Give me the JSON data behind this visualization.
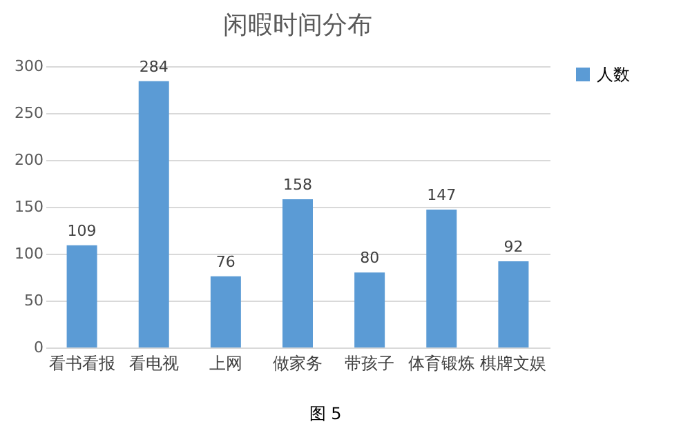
{
  "chart_data": {
    "type": "bar",
    "title": "闲暇时间分布",
    "categories": [
      "看书看报",
      "看电视",
      "上网",
      "做家务",
      "带孩子",
      "体育锻炼",
      "棋牌文娱"
    ],
    "series": [
      {
        "name": "人数",
        "color": "#5b9bd5",
        "values": [
          109,
          284,
          76,
          158,
          80,
          147,
          92
        ]
      }
    ],
    "ylim": [
      0,
      300
    ],
    "yticks": [
      0,
      50,
      100,
      150,
      200,
      250,
      300
    ],
    "grid": "y",
    "legend": "right",
    "data_labels": true,
    "annotations": [
      "图 5"
    ]
  }
}
